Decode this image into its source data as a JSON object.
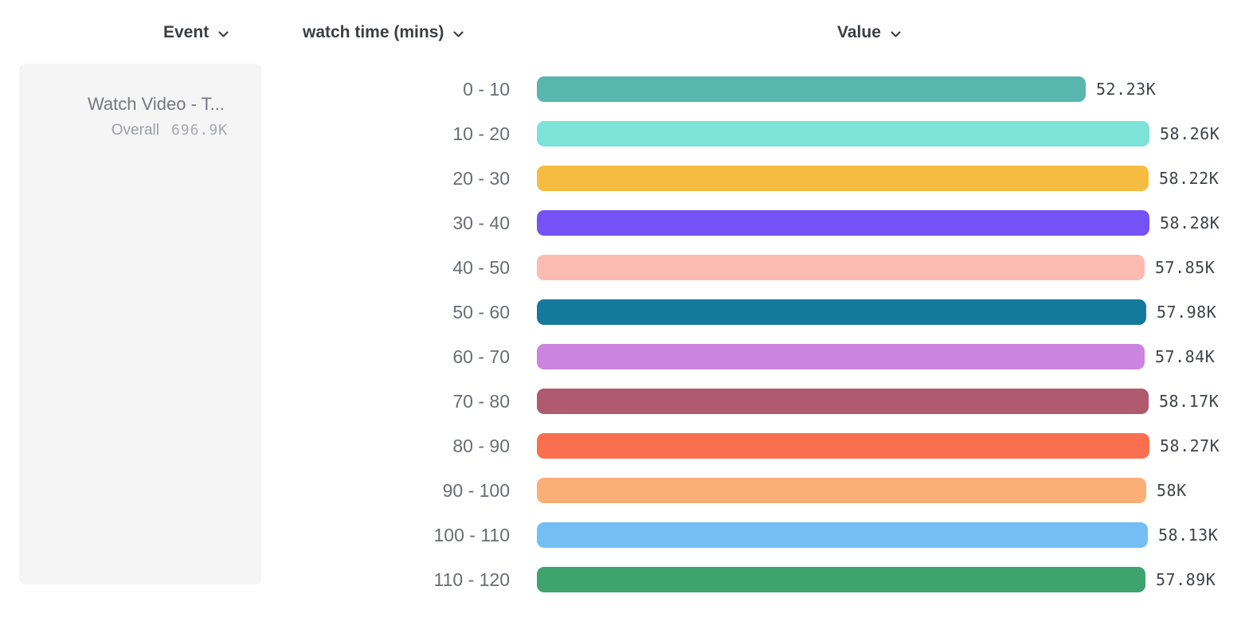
{
  "header": {
    "event_label": "Event",
    "property_label": "watch time (mins)",
    "value_label": "Value"
  },
  "legend_card": {
    "event_name": "Watch Video - T...",
    "overall_label": "Overall",
    "overall_value": "696.9K"
  },
  "icons": {
    "chevron_down": "v-shaped dropdown chevron"
  },
  "colors": {
    "header_text": "#3b3e44",
    "category_text": "#696d73",
    "value_text": "#40444b",
    "card_background": "#f5f5f6",
    "card_title_text": "#75787e",
    "card_muted_text": "#9b9ea4"
  },
  "chart_data": {
    "type": "bar",
    "orientation": "horizontal",
    "title": "",
    "xlabel": "Value",
    "ylabel": "watch time (mins)",
    "xlim": [
      0,
      58280
    ],
    "grid": false,
    "categories": [
      "0 - 10",
      "10 - 20",
      "20 - 30",
      "30 - 40",
      "40 - 50",
      "50 - 60",
      "60 - 70",
      "70 - 80",
      "80 - 90",
      "90 - 100",
      "100 - 110",
      "110 - 120"
    ],
    "values": [
      52230,
      58260,
      58220,
      58280,
      57850,
      57980,
      57840,
      58170,
      58270,
      58000,
      58130,
      57890
    ],
    "value_labels": [
      "52.23K",
      "58.26K",
      "58.22K",
      "58.28K",
      "57.85K",
      "57.98K",
      "57.84K",
      "58.17K",
      "58.27K",
      "58K",
      "58.13K",
      "57.89K"
    ],
    "bar_colors": [
      "#57b6ae",
      "#7de2d8",
      "#f6bc41",
      "#7452f5",
      "#fcbcb2",
      "#15799b",
      "#cb84e0",
      "#b05a6f",
      "#fb6f51",
      "#fcae77",
      "#74bef4",
      "#3ea46d"
    ],
    "overall_total": "696.9K",
    "series_name": "Watch Video - T..."
  }
}
